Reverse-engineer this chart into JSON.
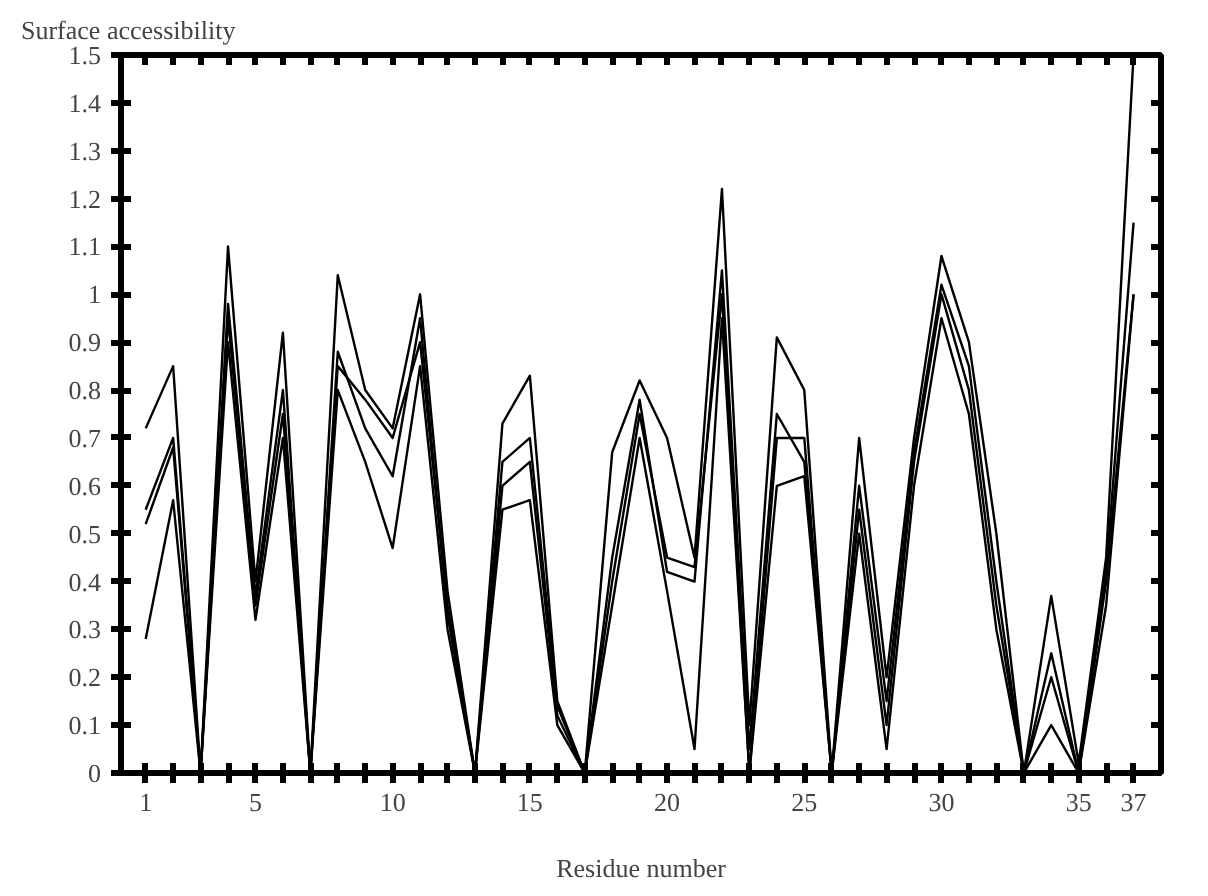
{
  "chart_data": {
    "type": "line",
    "title": "Surface accessibility",
    "xlabel": "Residue number",
    "x": [
      1,
      2,
      3,
      4,
      5,
      6,
      7,
      8,
      9,
      10,
      11,
      12,
      13,
      14,
      15,
      16,
      17,
      18,
      19,
      20,
      21,
      22,
      23,
      24,
      25,
      26,
      27,
      28,
      29,
      30,
      31,
      32,
      33,
      34,
      35,
      36,
      37
    ],
    "series": [
      {
        "color": "#000000",
        "values": [
          0.55,
          0.7,
          0,
          0.95,
          0.35,
          0.75,
          0,
          0.85,
          0.78,
          0.7,
          0.9,
          0.35,
          0,
          0.6,
          0.65,
          0.12,
          0,
          0.4,
          0.75,
          0.45,
          0.43,
          1.0,
          0,
          0.7,
          0.7,
          0,
          0.55,
          0.1,
          0.65,
          1.0,
          0.8,
          0.35,
          0,
          0.25,
          0,
          0.4,
          1.0
        ]
      },
      {
        "color": "#000000",
        "values": [
          0.72,
          0.85,
          0,
          1.1,
          0.4,
          0.92,
          0,
          1.04,
          0.8,
          0.72,
          1.0,
          0.38,
          0,
          0.73,
          0.83,
          0.15,
          0,
          0.67,
          0.82,
          0.7,
          0.45,
          1.22,
          0.1,
          0.91,
          0.8,
          0,
          0.7,
          0.2,
          0.7,
          1.08,
          0.9,
          0.5,
          0,
          0.37,
          0.02,
          0.45,
          1.5
        ]
      },
      {
        "color": "#000000",
        "values": [
          0.28,
          0.57,
          0,
          0.9,
          0.32,
          0.7,
          0,
          0.8,
          0.65,
          0.47,
          0.85,
          0.3,
          0,
          0.55,
          0.57,
          0.1,
          0,
          0.35,
          0.7,
          0.38,
          0.05,
          0.95,
          0,
          0.6,
          0.62,
          0,
          0.5,
          0.05,
          0.6,
          0.95,
          0.75,
          0.3,
          0,
          0.1,
          0,
          0.35,
          1.0
        ]
      },
      {
        "color": "#000000",
        "values": [
          0.52,
          0.68,
          0,
          0.98,
          0.37,
          0.8,
          0,
          0.88,
          0.72,
          0.62,
          0.95,
          0.33,
          0,
          0.65,
          0.7,
          0.14,
          0,
          0.45,
          0.78,
          0.42,
          0.4,
          1.05,
          0.05,
          0.75,
          0.65,
          0,
          0.6,
          0.15,
          0.67,
          1.02,
          0.85,
          0.4,
          0,
          0.2,
          0,
          0.42,
          1.15
        ]
      }
    ],
    "xlim": [
      0.1,
      38
    ],
    "ylim": [
      0,
      1.5
    ],
    "xticks": [
      1,
      {
        "value": 2,
        "label": null
      },
      {
        "value": 3,
        "label": null
      },
      {
        "value": 4,
        "label": null
      },
      5,
      {
        "value": 6,
        "label": null
      },
      {
        "value": 7,
        "label": null
      },
      {
        "value": 8,
        "label": null
      },
      {
        "value": 9,
        "label": null
      },
      10,
      {
        "value": 11,
        "label": null
      },
      {
        "value": 12,
        "label": null
      },
      {
        "value": 13,
        "label": null
      },
      {
        "value": 14,
        "label": null
      },
      15,
      {
        "value": 16,
        "label": null
      },
      {
        "value": 17,
        "label": null
      },
      {
        "value": 18,
        "label": null
      },
      {
        "value": 19,
        "label": null
      },
      20,
      {
        "value": 21,
        "label": null
      },
      {
        "value": 22,
        "label": null
      },
      {
        "value": 23,
        "label": null
      },
      {
        "value": 24,
        "label": null
      },
      25,
      {
        "value": 26,
        "label": null
      },
      {
        "value": 27,
        "label": null
      },
      {
        "value": 28,
        "label": null
      },
      {
        "value": 29,
        "label": null
      },
      30,
      {
        "value": 31,
        "label": null
      },
      {
        "value": 32,
        "label": null
      },
      {
        "value": 33,
        "label": null
      },
      {
        "value": 34,
        "label": null
      },
      35,
      {
        "value": 36,
        "label": null
      },
      37
    ],
    "yticks": [
      0,
      0.1,
      0.2,
      0.3,
      0.4,
      0.5,
      0.6,
      0.7,
      0.8,
      0.9,
      1,
      1.1,
      1.2,
      1.3,
      1.4,
      1.5
    ],
    "grid": false,
    "marker": "none",
    "line_style": "solid"
  }
}
